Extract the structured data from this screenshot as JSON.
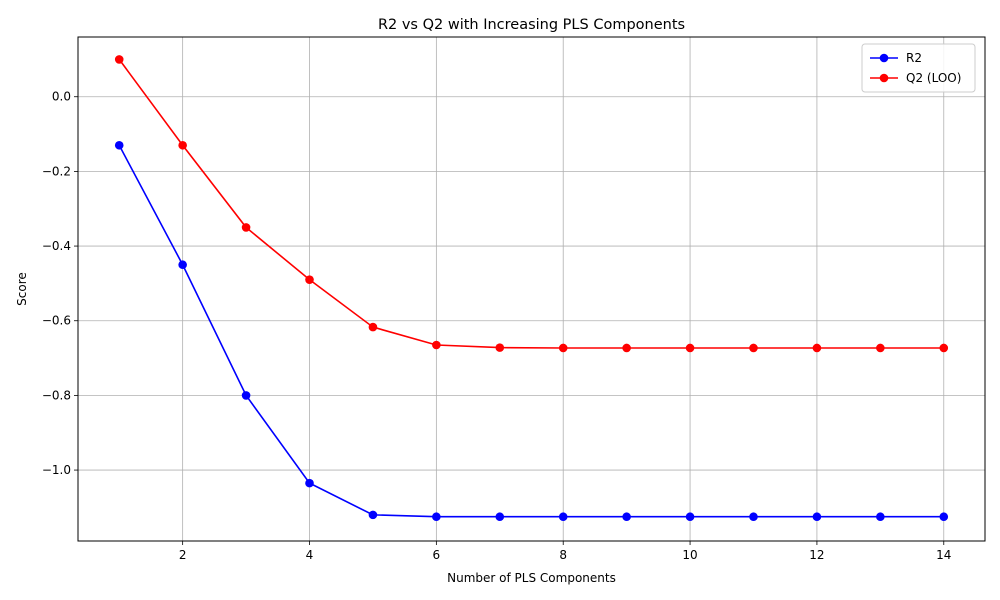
{
  "chart_data": {
    "type": "line",
    "title": "R2 vs Q2 with Increasing PLS Components",
    "xlabel": "Number of PLS Components",
    "ylabel": "Score",
    "xlim": [
      0.35,
      14.65
    ],
    "ylim": [
      -1.19,
      0.16
    ],
    "xticks": [
      2,
      4,
      6,
      8,
      10,
      12,
      14
    ],
    "yticks": [
      0.0,
      -0.2,
      -0.4,
      -0.6,
      -0.8,
      -1.0
    ],
    "xtick_labels": [
      "2",
      "4",
      "6",
      "8",
      "10",
      "12",
      "14"
    ],
    "ytick_labels": [
      "0.0",
      "−0.2",
      "−0.4",
      "−0.6",
      "−0.8",
      "−1.0"
    ],
    "grid": true,
    "legend_position": "top-right",
    "x": [
      1,
      2,
      3,
      4,
      5,
      6,
      7,
      8,
      9,
      10,
      11,
      12,
      13,
      14
    ],
    "series": [
      {
        "name": "R2",
        "color": "#0000ff",
        "values": [
          -0.13,
          -0.45,
          -0.8,
          -1.035,
          -1.12,
          -1.125,
          -1.125,
          -1.125,
          -1.125,
          -1.125,
          -1.125,
          -1.125,
          -1.125,
          -1.125
        ]
      },
      {
        "name": "Q2 (LOO)",
        "color": "#ff0000",
        "values": [
          0.1,
          -0.13,
          -0.35,
          -0.49,
          -0.617,
          -0.665,
          -0.672,
          -0.673,
          -0.673,
          -0.673,
          -0.673,
          -0.673,
          -0.673,
          -0.673
        ]
      }
    ]
  }
}
